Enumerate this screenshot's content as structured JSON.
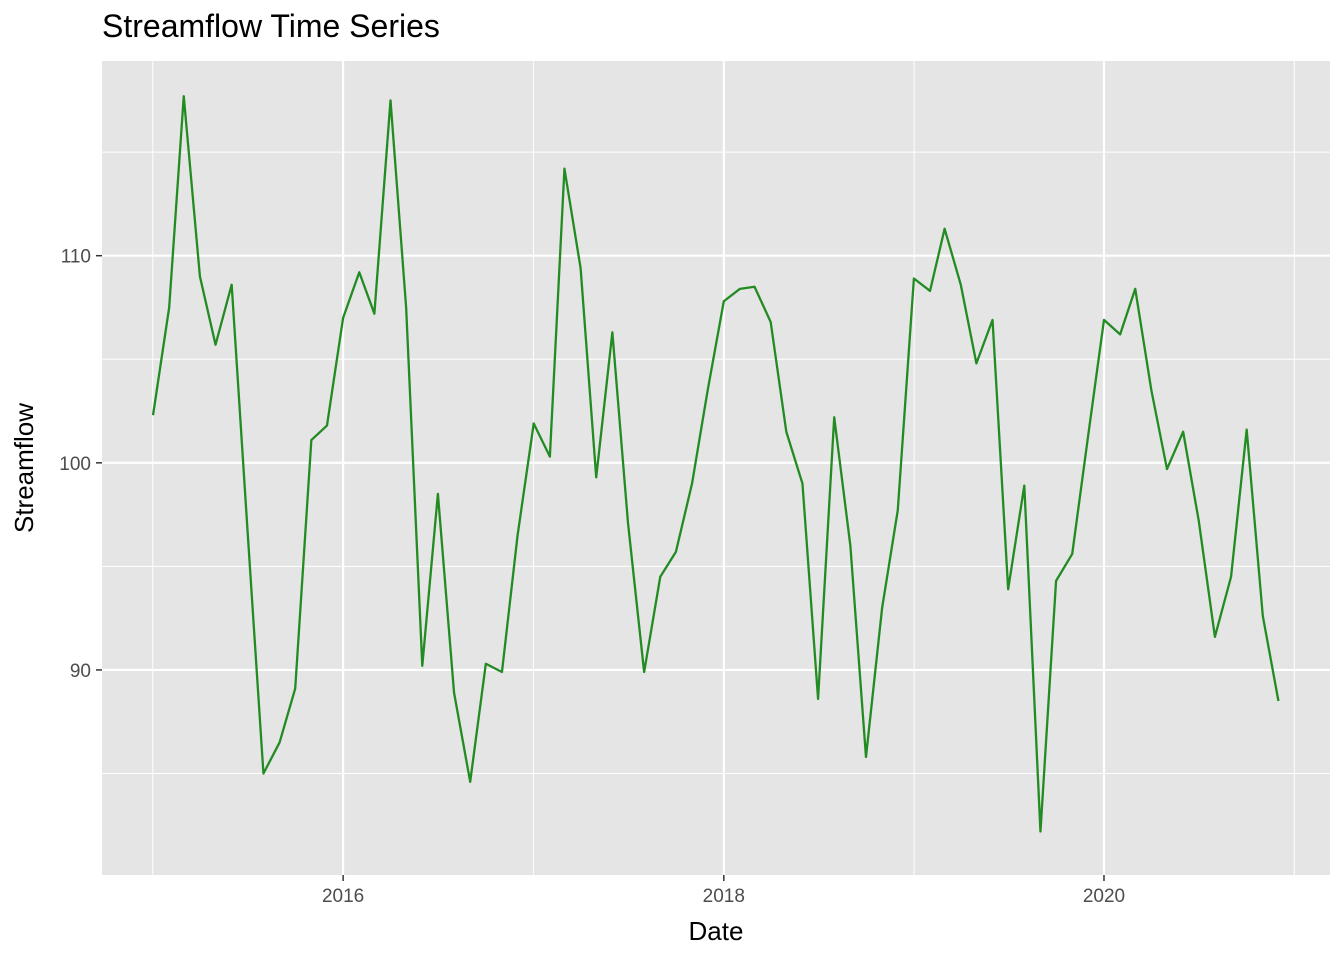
{
  "chart_data": {
    "type": "line",
    "title": "Streamflow Time Series",
    "xlabel": "Date",
    "ylabel": "Streamflow",
    "x_ticks": [
      "2016-01-01",
      "2018-01-01",
      "2020-01-01"
    ],
    "x_tick_labels": [
      "2016",
      "2018",
      "2020"
    ],
    "y_ticks": [
      90,
      100,
      110
    ],
    "y_tick_labels": [
      "90",
      "100",
      "110"
    ],
    "xlim": [
      "2014-09-25",
      "2021-03-10"
    ],
    "ylim": [
      80.1,
      119.4
    ],
    "grid": true,
    "line_color": "#228B22",
    "panel_color": "#E5E5E5",
    "grid_color": "#FFFFFF",
    "series": [
      {
        "x": [
          "2015-01-01",
          "2015-02-01",
          "2015-03-01",
          "2015-04-01",
          "2015-05-01",
          "2015-06-01",
          "2015-07-01",
          "2015-08-01",
          "2015-09-01",
          "2015-10-01",
          "2015-11-01",
          "2015-12-01",
          "2016-01-01",
          "2016-02-01",
          "2016-03-01",
          "2016-04-01",
          "2016-05-01",
          "2016-06-01",
          "2016-07-01",
          "2016-08-01",
          "2016-09-01",
          "2016-10-01",
          "2016-11-01",
          "2016-12-01",
          "2017-01-01",
          "2017-02-01",
          "2017-03-01",
          "2017-04-01",
          "2017-05-01",
          "2017-06-01",
          "2017-07-01",
          "2017-08-01",
          "2017-09-01",
          "2017-10-01",
          "2017-11-01",
          "2017-12-01",
          "2018-01-01",
          "2018-02-01",
          "2018-03-01",
          "2018-04-01",
          "2018-05-01",
          "2018-06-01",
          "2018-07-01",
          "2018-08-01",
          "2018-09-01",
          "2018-10-01",
          "2018-11-01",
          "2018-12-01",
          "2019-01-01",
          "2019-02-01",
          "2019-03-01",
          "2019-04-01",
          "2019-05-01",
          "2019-06-01",
          "2019-07-01",
          "2019-08-01",
          "2019-09-01",
          "2019-10-01",
          "2019-11-01",
          "2019-12-01",
          "2020-01-01",
          "2020-02-01",
          "2020-03-01",
          "2020-04-01",
          "2020-05-01",
          "2020-06-01",
          "2020-07-01",
          "2020-08-01",
          "2020-09-01",
          "2020-10-01",
          "2020-11-01",
          "2020-12-01"
        ],
        "values": [
          102.3,
          107.5,
          117.7,
          109.0,
          105.7,
          108.6,
          96.9,
          85.0,
          86.5,
          89.1,
          101.1,
          101.8,
          107.0,
          109.2,
          107.2,
          117.5,
          107.5,
          90.2,
          98.5,
          88.9,
          84.6,
          90.3,
          89.9,
          96.5,
          101.9,
          100.3,
          114.2,
          109.4,
          99.3,
          106.3,
          97.1,
          89.9,
          94.5,
          95.7,
          99.0,
          103.5,
          107.8,
          108.4,
          108.5,
          106.8,
          101.5,
          99.0,
          88.6,
          102.2,
          96.0,
          85.8,
          93.0,
          97.7,
          108.9,
          108.3,
          111.3,
          108.6,
          104.8,
          106.9,
          93.9,
          98.9,
          82.2,
          94.3,
          95.6,
          101.2,
          106.9,
          106.2,
          108.4,
          103.5,
          99.7,
          101.5,
          97.2,
          91.6,
          94.5,
          101.6,
          92.6,
          88.5
        ]
      }
    ]
  }
}
